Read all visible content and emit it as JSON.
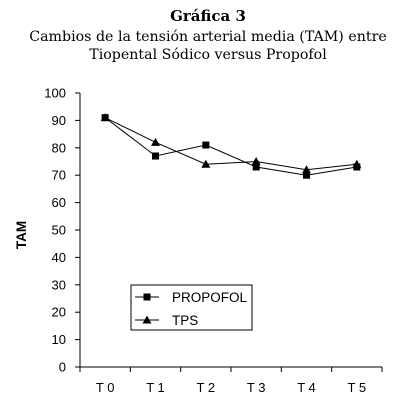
{
  "figure": {
    "number": "Gráfica 3",
    "title_line1": "Cambios de la tensión arterial media (TAM) entre",
    "title_line2": "Tiopental Sódico versus Propofol"
  },
  "chart_data": {
    "type": "line",
    "title": "Cambios de la tensión arterial media (TAM) entre Tiopental Sódico versus Propofol",
    "xlabel": "",
    "ylabel": "TAM",
    "categories": [
      "T 0",
      "T 1",
      "T 2",
      "T 3",
      "T 4",
      "T 5"
    ],
    "ylim": [
      0,
      100
    ],
    "yticks": [
      0,
      10,
      20,
      30,
      40,
      50,
      60,
      70,
      80,
      90,
      100
    ],
    "grid": false,
    "legend_position": "bottom-left",
    "series": [
      {
        "name": "PROPOFOL",
        "marker": "square",
        "color": "#000000",
        "values": [
          91,
          77,
          81,
          73,
          70,
          73
        ]
      },
      {
        "name": "TPS",
        "marker": "triangle",
        "color": "#000000",
        "values": [
          91,
          82,
          74,
          75,
          72,
          74
        ]
      }
    ]
  }
}
